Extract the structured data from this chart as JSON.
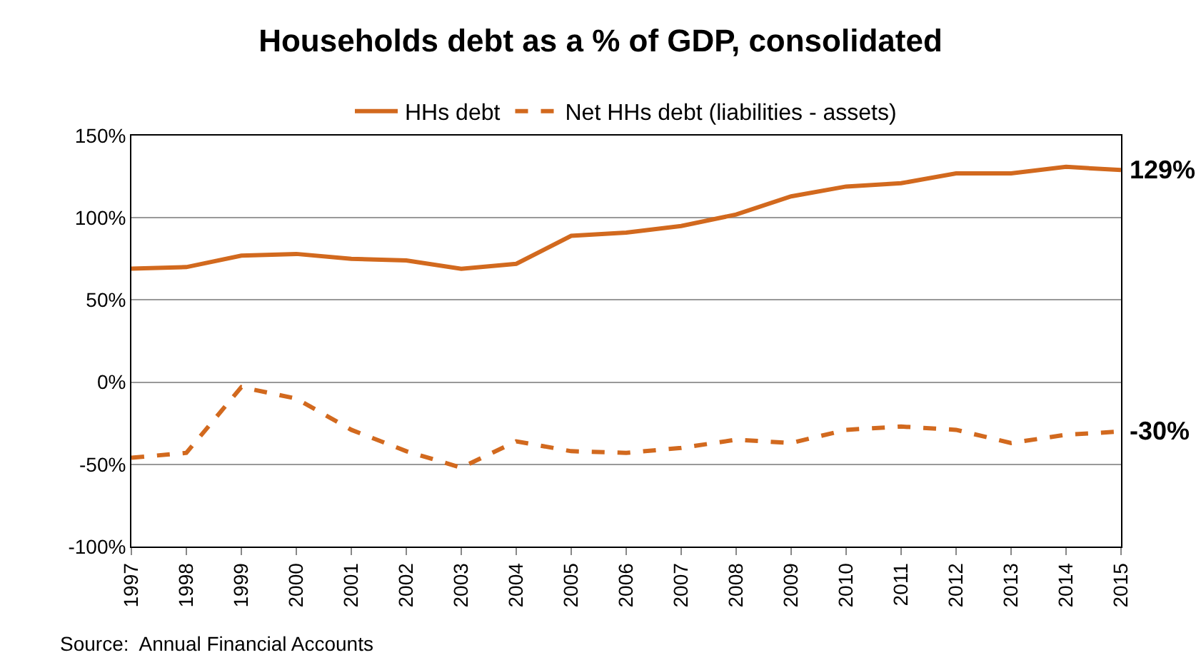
{
  "chart_data": {
    "type": "line",
    "title": "Households debt as a % of GDP, consolidated",
    "x": [
      1997,
      1998,
      1999,
      2000,
      2001,
      2002,
      2003,
      2004,
      2005,
      2006,
      2007,
      2008,
      2009,
      2010,
      2011,
      2012,
      2013,
      2014,
      2015
    ],
    "series": [
      {
        "name": "HHs debt",
        "color": "#d2691e",
        "line_style": "solid",
        "values": [
          69,
          70,
          77,
          78,
          75,
          74,
          69,
          72,
          89,
          91,
          95,
          102,
          113,
          119,
          121,
          127,
          127,
          131,
          129
        ]
      },
      {
        "name": "Net HHs debt (liabilities - assets)",
        "color": "#d2691e",
        "line_style": "dashed",
        "values": [
          -46,
          -43,
          -3,
          -10,
          -29,
          -42,
          -52,
          -36,
          -42,
          -43,
          -40,
          -35,
          -37,
          -29,
          -27,
          -29,
          -37,
          -32,
          -30
        ]
      }
    ],
    "xlim": [
      1997,
      2015
    ],
    "xticks": [
      1997,
      1998,
      1999,
      2000,
      2001,
      2002,
      2003,
      2004,
      2005,
      2006,
      2007,
      2008,
      2009,
      2010,
      2011,
      2012,
      2013,
      2014,
      2015
    ],
    "ylim": [
      -100,
      150
    ],
    "yticks": [
      {
        "value": -100,
        "label": "-100%"
      },
      {
        "value": -50,
        "label": "-50%"
      },
      {
        "value": 0,
        "label": "0%"
      },
      {
        "value": 50,
        "label": "50%"
      },
      {
        "value": 100,
        "label": "100%"
      },
      {
        "value": 150,
        "label": "150%"
      }
    ],
    "grid": "y",
    "legend": "top",
    "marker": "none",
    "annotations": [
      {
        "text": "129%",
        "x": 2015,
        "y": 129
      },
      {
        "text": "-30%",
        "x": 2015,
        "y": -30
      },
      "Source:  Annual Financial Accounts"
    ]
  }
}
